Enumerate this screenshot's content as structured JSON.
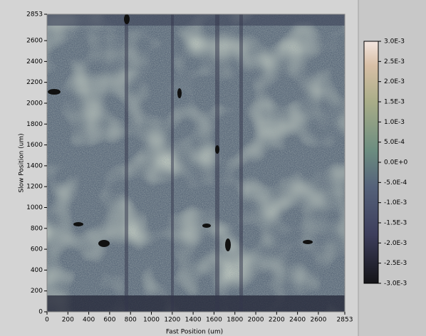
{
  "chart_data": {
    "type": "heatmap",
    "x_label": "Fast Position (um)",
    "y_label": "Slow Position (um)",
    "xlim": [
      0,
      2853
    ],
    "ylim": [
      0,
      2853
    ],
    "xticks": [
      0,
      200,
      400,
      600,
      800,
      1000,
      1200,
      1400,
      1600,
      1800,
      2000,
      2200,
      2400,
      2600,
      2853
    ],
    "yticks": [
      0,
      200,
      400,
      600,
      800,
      1000,
      1200,
      1400,
      1600,
      1800,
      2000,
      2200,
      2400,
      2600,
      2853
    ],
    "colorbar": {
      "lim": [
        -0.003,
        0.003
      ],
      "ticks": [
        {
          "value": 0.003,
          "label": "3.0E-3"
        },
        {
          "value": 0.0025,
          "label": "2.5E-3"
        },
        {
          "value": 0.002,
          "label": "2.0E-3"
        },
        {
          "value": 0.0015,
          "label": "1.5E-3"
        },
        {
          "value": 0.001,
          "label": "1.0E-3"
        },
        {
          "value": 0.0005,
          "label": "5.0E-4"
        },
        {
          "value": 0,
          "label": "0.0E+0"
        },
        {
          "value": -0.0005,
          "label": "-5.0E-4"
        },
        {
          "value": -0.001,
          "label": "-1.0E-3"
        },
        {
          "value": -0.0015,
          "label": "-1.5E-3"
        },
        {
          "value": -0.002,
          "label": "-2.0E-3"
        },
        {
          "value": -0.0025,
          "label": "-2.5E-3"
        },
        {
          "value": -0.003,
          "label": "-3.0E-3"
        }
      ]
    }
  }
}
